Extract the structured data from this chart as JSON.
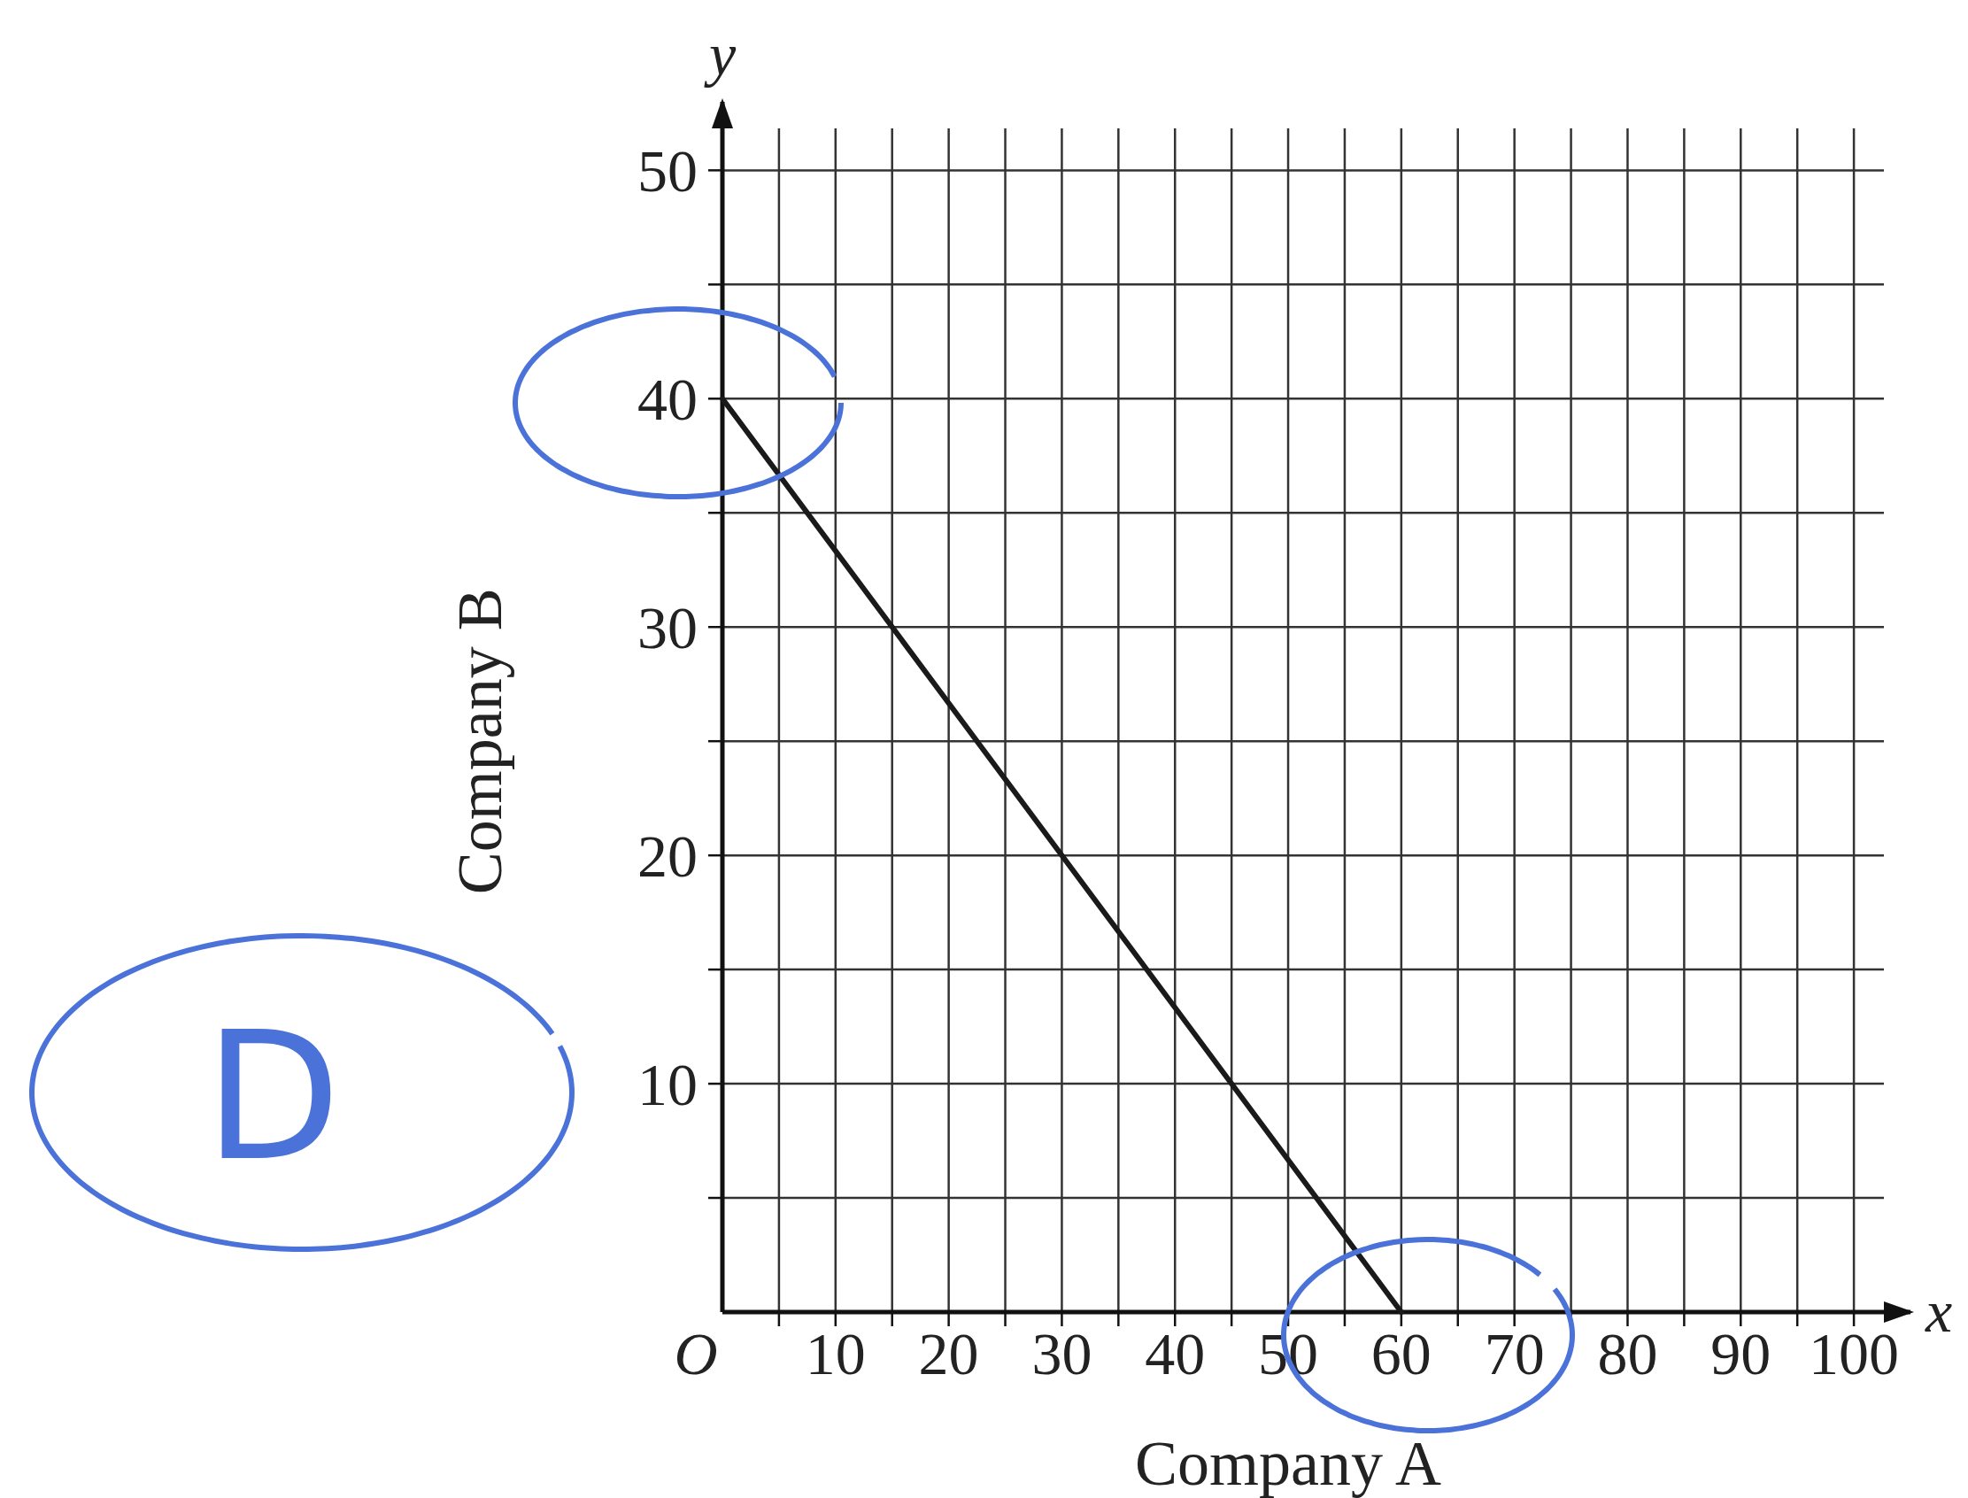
{
  "chart_data": {
    "type": "line",
    "xlabel": "Company A",
    "ylabel": "Company B",
    "x": [
      0,
      60
    ],
    "series": [
      {
        "color": "#1a1a1a",
        "values": [
          40,
          0
        ]
      }
    ],
    "xlim": [
      0,
      105
    ],
    "ylim": [
      0,
      53
    ],
    "xticks": [
      {
        "value": 0,
        "label": "O"
      },
      {
        "value": 5,
        "label": null
      },
      10,
      {
        "value": 15,
        "label": null
      },
      20,
      {
        "value": 25,
        "label": null
      },
      30,
      {
        "value": 35,
        "label": null
      },
      40,
      {
        "value": 45,
        "label": null
      },
      50,
      {
        "value": 55,
        "label": null
      },
      60,
      {
        "value": 65,
        "label": null
      },
      70,
      {
        "value": 75,
        "label": null
      },
      80,
      {
        "value": 85,
        "label": null
      },
      90,
      {
        "value": 95,
        "label": null
      },
      100
    ],
    "yticks": [
      {
        "value": 5,
        "label": null
      },
      10,
      {
        "value": 15,
        "label": null
      },
      20,
      {
        "value": 25,
        "label": null
      },
      30,
      {
        "value": 35,
        "label": null
      },
      40,
      {
        "value": 45,
        "label": null
      },
      50
    ],
    "grid": true,
    "marker": "none",
    "line_style": "solid",
    "annotations": [
      "x",
      "y",
      "D"
    ]
  }
}
